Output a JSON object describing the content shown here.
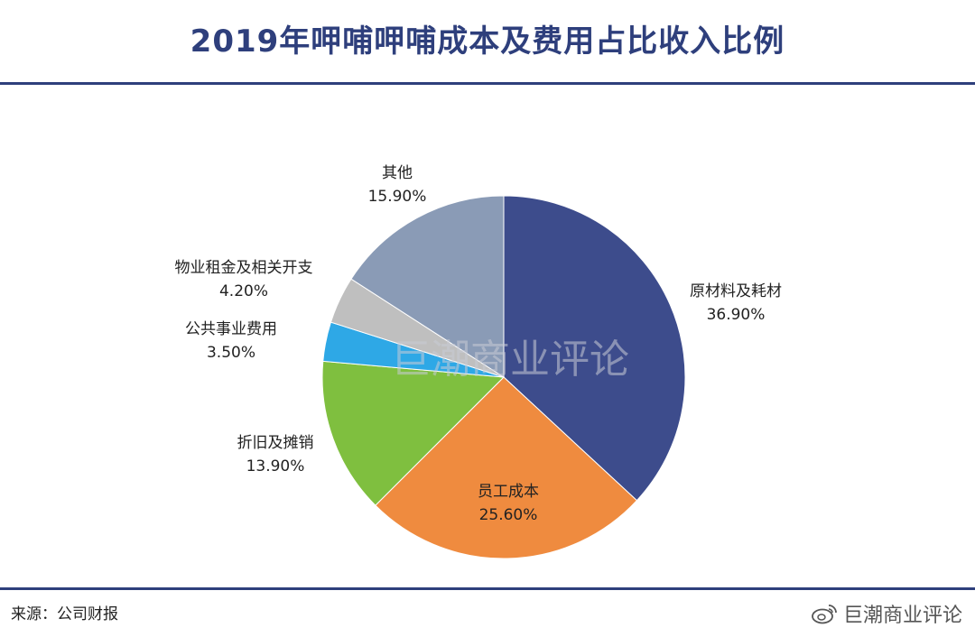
{
  "title": "2019年呷哺呷哺成本及费用占比收入比例",
  "source_text": "来源：公司财报",
  "watermark_center": "巨潮商业评论",
  "watermark_corner": "巨潮商业评论",
  "colors": {
    "title": "#2e3f7c",
    "slices": [
      "#3d4c8c",
      "#ef8b3f",
      "#7fbf3f",
      "#2ea8e6",
      "#bfbfbf",
      "#8a9bb6"
    ]
  },
  "chart_data": {
    "type": "pie",
    "title": "2019年呷哺呷哺成本及费用占比收入比例",
    "slices": [
      {
        "label": "原材料及耗材",
        "value": 36.9,
        "value_text": "36.90%"
      },
      {
        "label": "员工成本",
        "value": 25.6,
        "value_text": "25.60%"
      },
      {
        "label": "折旧及摊销",
        "value": 13.9,
        "value_text": "13.90%"
      },
      {
        "label": "公共事业费用",
        "value": 3.5,
        "value_text": "3.50%"
      },
      {
        "label": "物业租金及相关开支",
        "value": 4.2,
        "value_text": "4.20%"
      },
      {
        "label": "其他",
        "value": 15.9,
        "value_text": "15.90%"
      }
    ]
  }
}
